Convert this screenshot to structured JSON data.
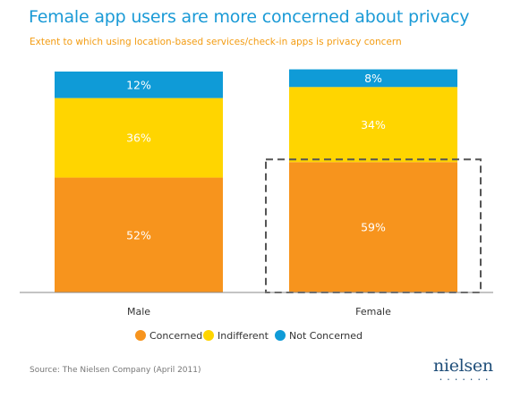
{
  "title": "Female app users are more concerned about privacy",
  "subtitle": "Extent to which using location-based services/check-in apps is privacy concern",
  "source": "Source: The Nielsen Company (April 2011)",
  "logo_text": "nielsen",
  "colors": {
    "title": "#1a9ad6",
    "subtitle": "#f39c12",
    "concerned": "#f7941d",
    "indifferent": "#ffd500",
    "not_concerned": "#0f9bd7",
    "highlight_box": "#555555"
  },
  "chart_data": {
    "type": "bar",
    "stacked": true,
    "percent": true,
    "categories": [
      "Male",
      "Female"
    ],
    "series": [
      {
        "name": "Concerned",
        "values": [
          52,
          59
        ],
        "labels": [
          "52%",
          "59%"
        ],
        "color": "#f7941d"
      },
      {
        "name": "Indifferent",
        "values": [
          36,
          34
        ],
        "labels": [
          "36%",
          "34%"
        ],
        "color": "#ffd500"
      },
      {
        "name": "Not Concerned",
        "values": [
          12,
          8
        ],
        "labels": [
          "12%",
          "8%"
        ],
        "color": "#0f9bd7"
      }
    ],
    "ylim": [
      0,
      100
    ],
    "legend_position": "bottom",
    "highlight": {
      "category": "Female",
      "series": "Concerned",
      "style": "dashed box"
    }
  }
}
